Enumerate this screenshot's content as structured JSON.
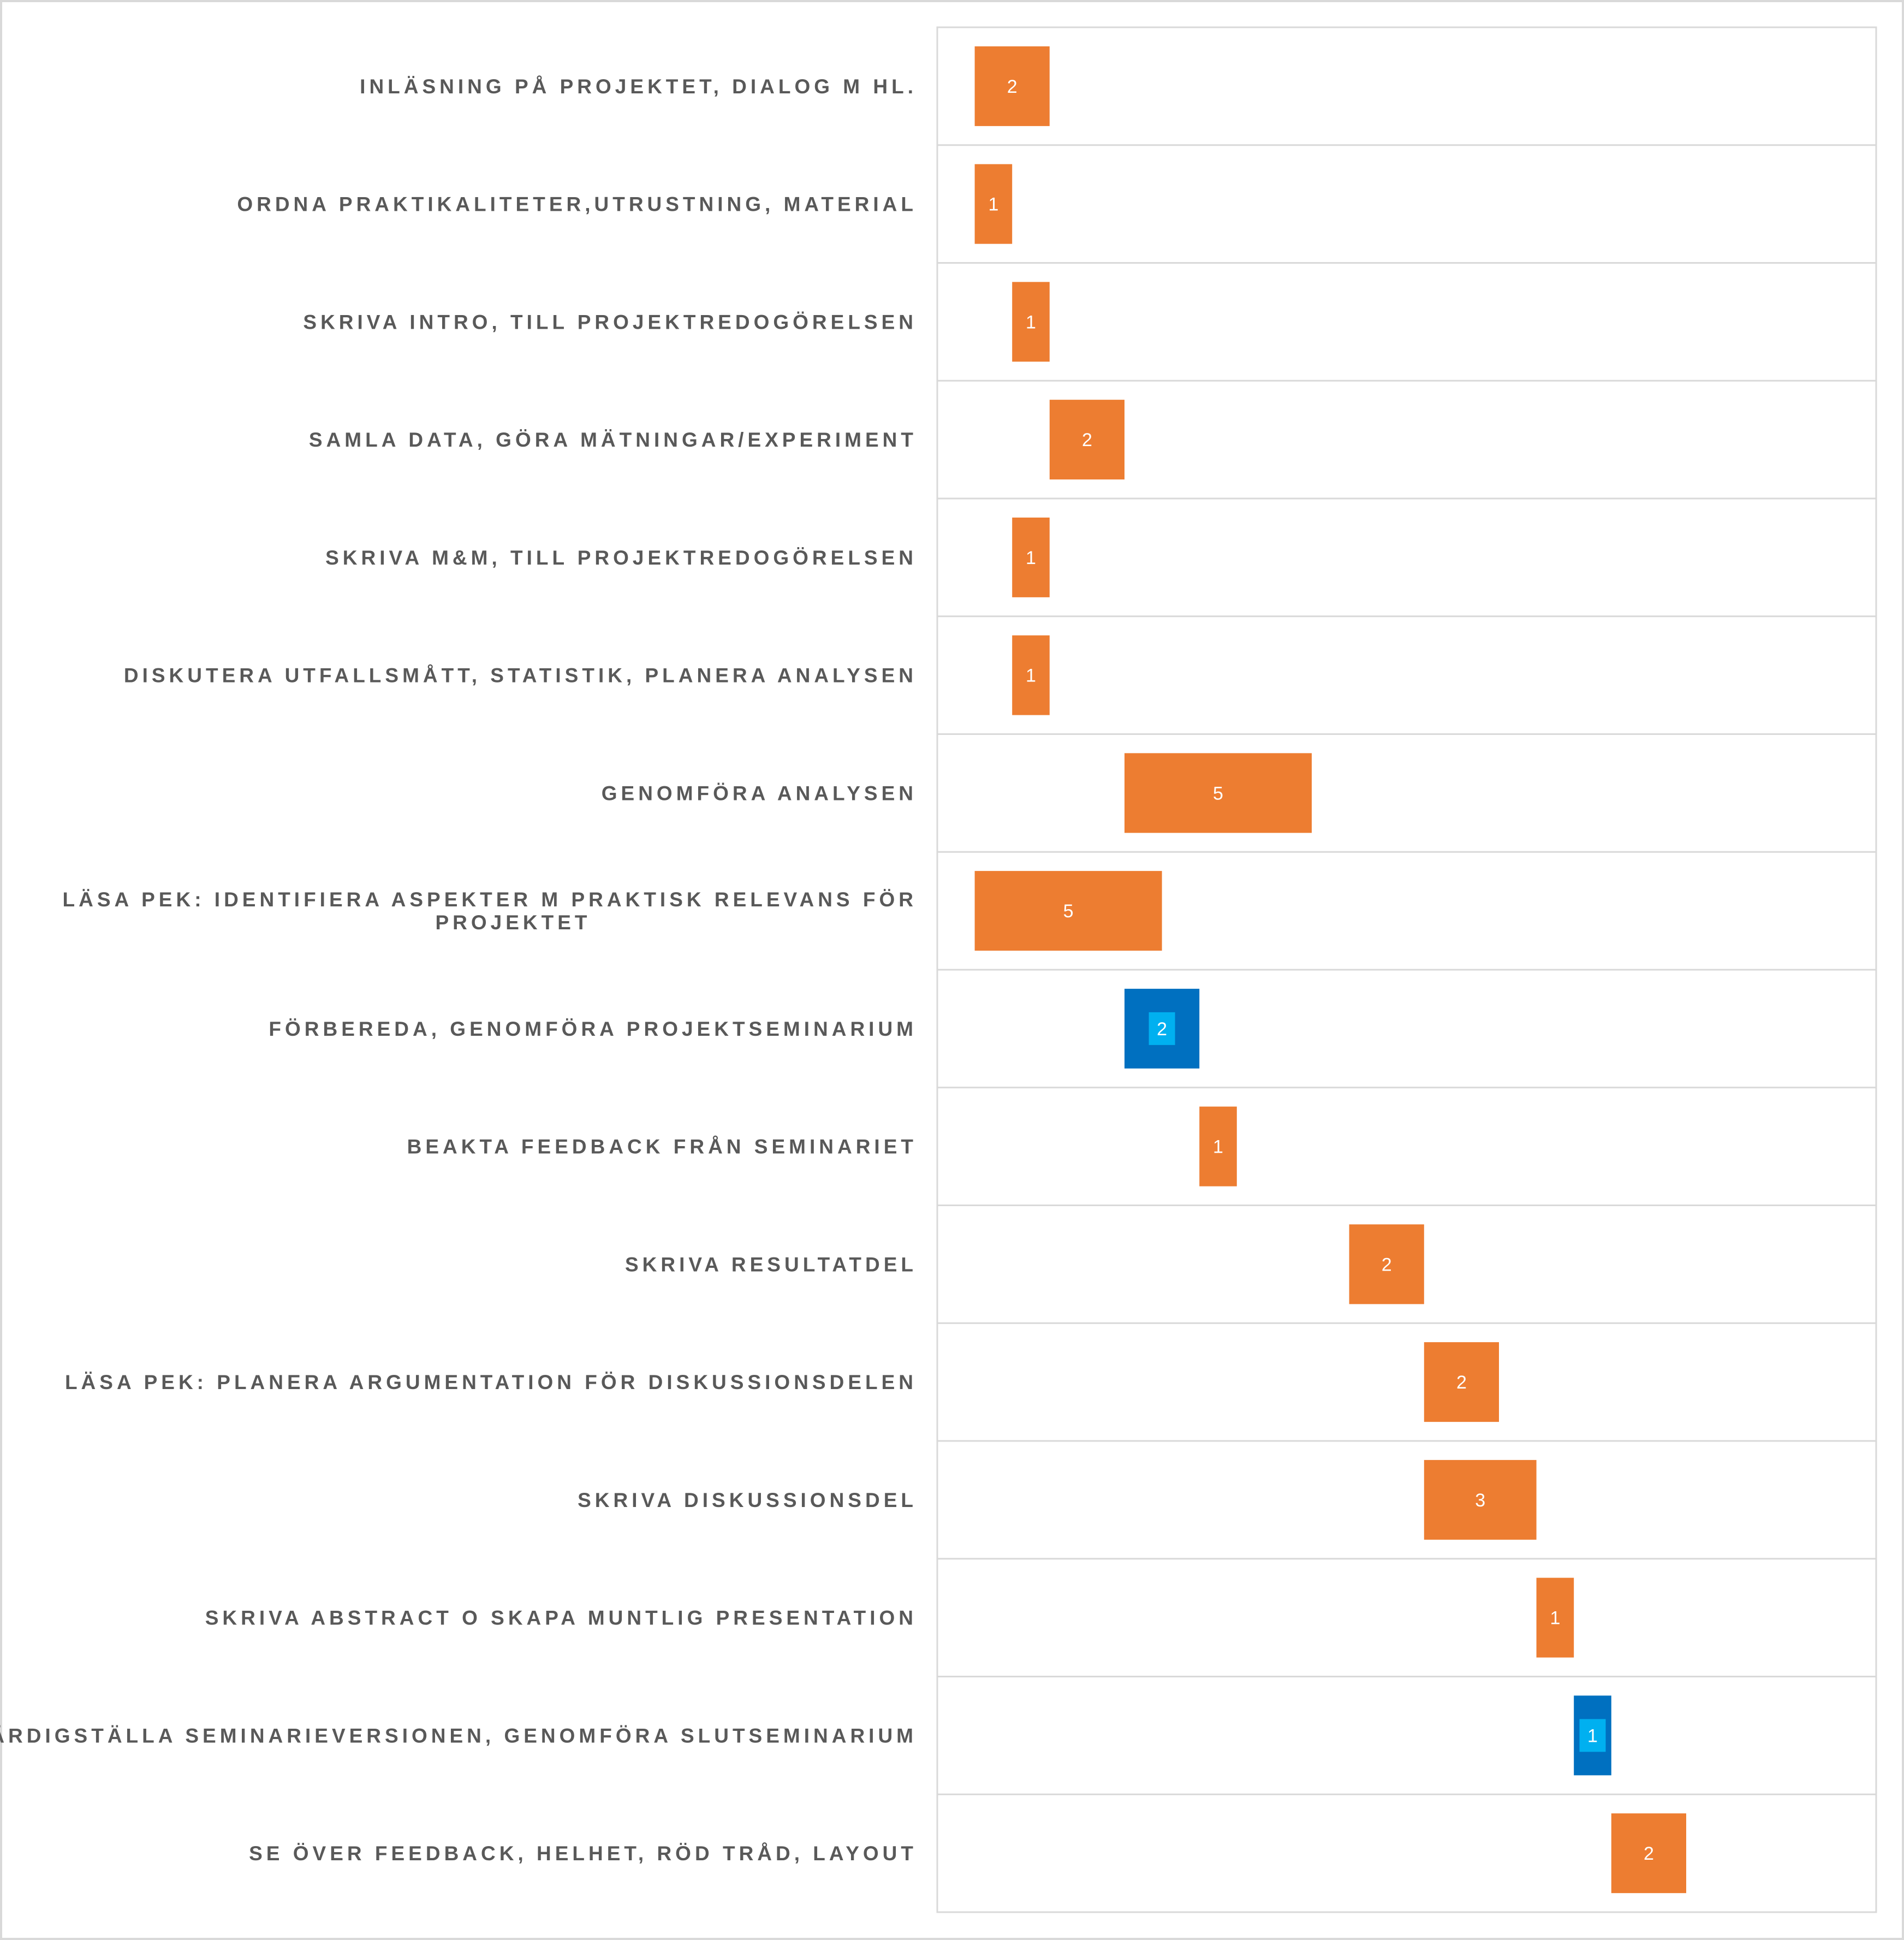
{
  "chart_data": {
    "type": "bar",
    "orientation": "horizontal",
    "stacked": true,
    "xlim": [
      0,
      25
    ],
    "grid": {
      "horizontal": true,
      "vertical": false
    },
    "legend": "none",
    "colors": {
      "task": "#ED7D31",
      "seminar": "#0070C0",
      "seminar_label_box": "#00B0F0",
      "label_text": "#595959",
      "gridline": "#D9D9D9"
    },
    "tasks": [
      {
        "label": "INLÄSNING PÅ PROJEKTET, DIALOG M HL.",
        "start": 1,
        "duration": 2,
        "kind": "task"
      },
      {
        "label": "ORDNA PRAKTIKALITETER,UTRUSTNING, MATERIAL",
        "start": 1,
        "duration": 1,
        "kind": "task"
      },
      {
        "label": "SKRIVA INTRO, TILL PROJEKTREDOGÖRELSEN",
        "start": 2,
        "duration": 1,
        "kind": "task"
      },
      {
        "label": "SAMLA DATA, GÖRA MÄTNINGAR/EXPERIMENT",
        "start": 3,
        "duration": 2,
        "kind": "task"
      },
      {
        "label": "SKRIVA M&M, TILL PROJEKTREDOGÖRELSEN",
        "start": 2,
        "duration": 1,
        "kind": "task"
      },
      {
        "label": "DISKUTERA UTFALLSMÅTT, STATISTIK, PLANERA ANALYSEN",
        "start": 2,
        "duration": 1,
        "kind": "task"
      },
      {
        "label": "GENOMFÖRA ANALYSEN",
        "start": 5,
        "duration": 5,
        "kind": "task"
      },
      {
        "label": "LÄSA PEK: IDENTIFIERA ASPEKTER M PRAKTISK RELEVANS FÖR PROJEKTET",
        "label_lines": [
          "LÄSA PEK: IDENTIFIERA ASPEKTER M PRAKTISK RELEVANS FÖR",
          "PROJEKTET"
        ],
        "start": 1,
        "duration": 5,
        "kind": "task"
      },
      {
        "label": "FÖRBEREDA, GENOMFÖRA PROJEKTSEMINARIUM",
        "start": 5,
        "duration": 2,
        "kind": "seminar"
      },
      {
        "label": "BEAKTA FEEDBACK FRÅN SEMINARIET",
        "start": 7,
        "duration": 1,
        "kind": "task"
      },
      {
        "label": "SKRIVA RESULTATDEL",
        "start": 11,
        "duration": 2,
        "kind": "task"
      },
      {
        "label": "LÄSA PEK: PLANERA ARGUMENTATION FÖR DISKUSSIONSDELEN",
        "start": 13,
        "duration": 2,
        "kind": "task"
      },
      {
        "label": "SKRIVA DISKUSSIONSDEL",
        "start": 13,
        "duration": 3,
        "kind": "task"
      },
      {
        "label": "SKRIVA ABSTRACT O SKAPA MUNTLIG PRESENTATION",
        "start": 16,
        "duration": 1,
        "kind": "task"
      },
      {
        "label": "FÄRDIGSTÄLLA SEMINARIEVERSIONEN, GENOMFÖRA SLUTSEMINARIUM",
        "start": 17,
        "duration": 1,
        "kind": "seminar"
      },
      {
        "label": "SE ÖVER FEEDBACK, HELHET, RÖD TRÅD, LAYOUT",
        "start": 18,
        "duration": 2,
        "kind": "task"
      }
    ]
  }
}
